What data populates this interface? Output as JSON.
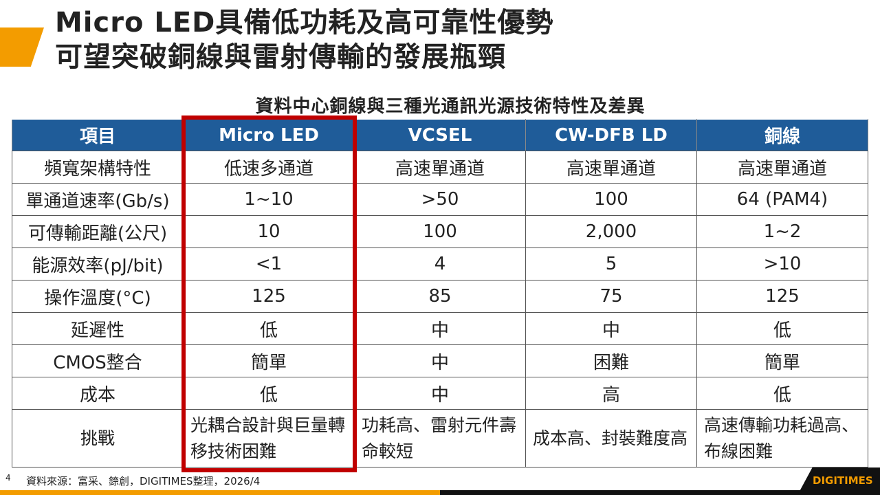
{
  "title": {
    "line1": "Micro LED具備低功耗及高可靠性優勢",
    "line2": "可望突破銅線與雷射傳輸的發展瓶頸"
  },
  "table_title": "資料中心銅線與三種光通訊光源技術特性及差異",
  "headers": [
    "項目",
    "Micro LED",
    "VCSEL",
    "CW-DFB LD",
    "銅線"
  ],
  "rows": [
    [
      "頻寬架構特性",
      "低速多通道",
      "高速單通道",
      "高速單通道",
      "高速單通道"
    ],
    [
      "單通道速率(Gb/s)",
      "1~10",
      ">50",
      "100",
      "64 (PAM4)"
    ],
    [
      "可傳輸距離(公尺)",
      "10",
      "100",
      "2,000",
      "1~2"
    ],
    [
      "能源效率(pJ/bit)",
      "<1",
      "4",
      "5",
      ">10"
    ],
    [
      "操作溫度(°C)",
      "125",
      "85",
      "75",
      "125"
    ],
    [
      "延遲性",
      "低",
      "中",
      "中",
      "低"
    ],
    [
      "CMOS整合",
      "簡單",
      "中",
      "困難",
      "簡單"
    ],
    [
      "成本",
      "低",
      "中",
      "高",
      "低"
    ],
    [
      "挑戰",
      "光耦合設計與巨量轉移技術困難",
      "功耗高、雷射元件壽命較短",
      "成本高、封裝難度高",
      "高速傳輸功耗過高、布線困難"
    ]
  ],
  "footer": {
    "page": "4",
    "source": "資料來源：富采、錼創，DIGITIMES整理，2026/4",
    "logo": "DIGITIMES"
  },
  "colors": {
    "header_bg": "#1f5c99",
    "highlight": "#c00000",
    "accent": "#f39c00"
  }
}
